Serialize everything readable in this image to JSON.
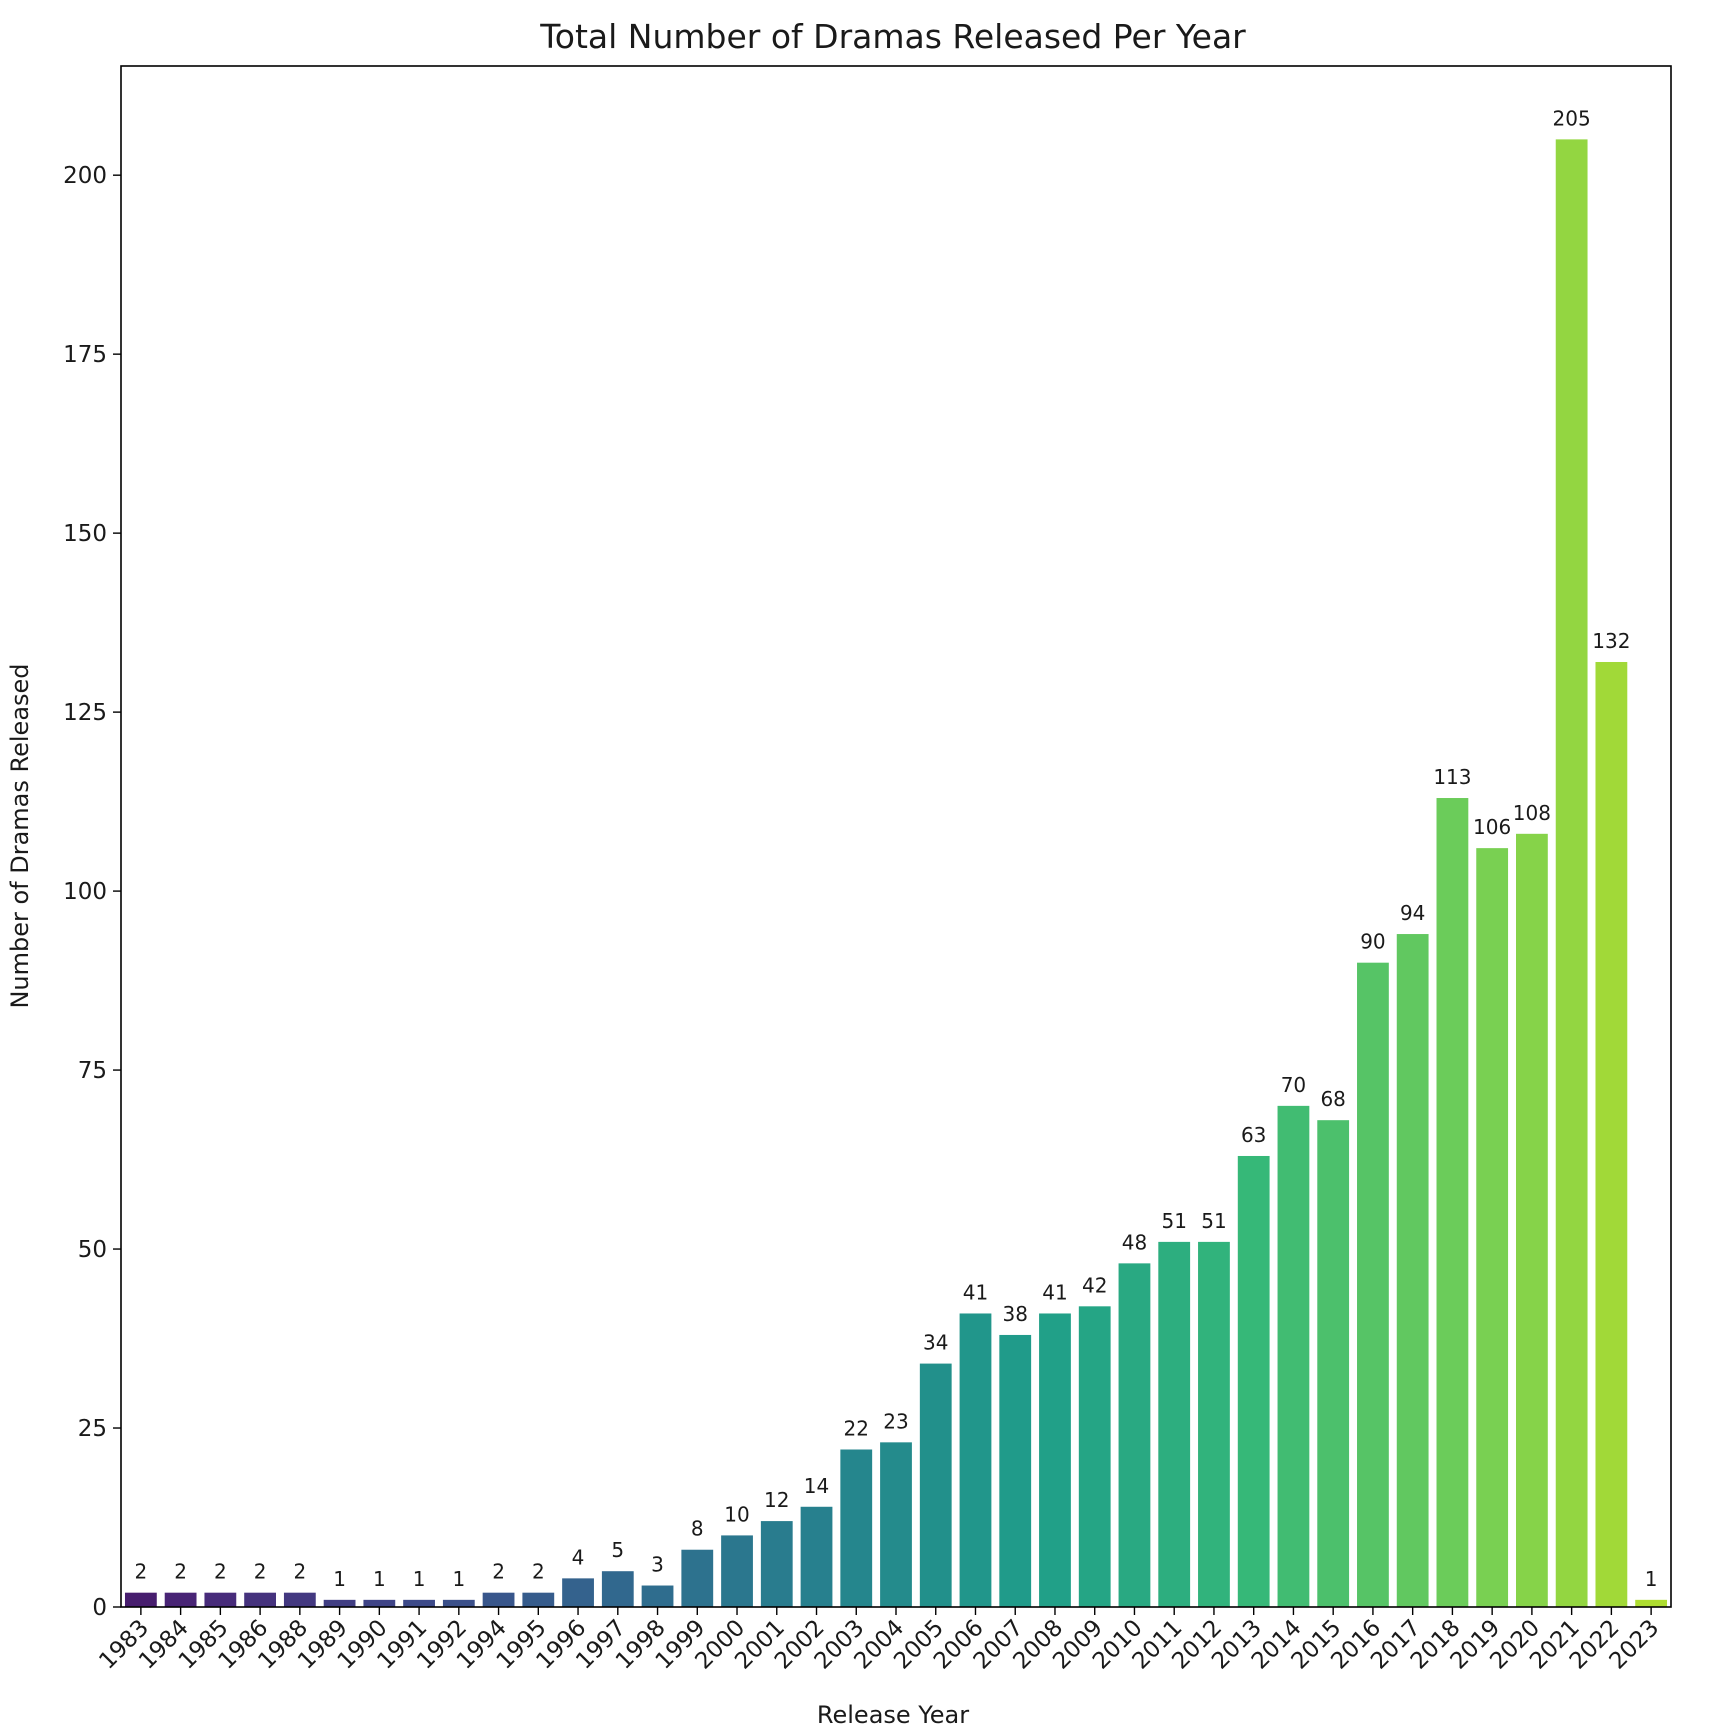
{
  "chart_data": {
    "type": "bar",
    "title": "Total Number of Dramas Released Per Year",
    "xlabel": "Release Year",
    "ylabel": "Number of Dramas Released",
    "categories": [
      "1983",
      "1984",
      "1985",
      "1986",
      "1988",
      "1989",
      "1990",
      "1991",
      "1992",
      "1994",
      "1995",
      "1996",
      "1997",
      "1998",
      "1999",
      "2000",
      "2001",
      "2002",
      "2003",
      "2004",
      "2005",
      "2006",
      "2007",
      "2008",
      "2009",
      "2010",
      "2011",
      "2012",
      "2013",
      "2014",
      "2015",
      "2016",
      "2017",
      "2018",
      "2019",
      "2020",
      "2021",
      "2022",
      "2023"
    ],
    "values": [
      2,
      2,
      2,
      2,
      2,
      1,
      1,
      1,
      1,
      2,
      2,
      4,
      5,
      3,
      8,
      10,
      12,
      14,
      22,
      23,
      34,
      41,
      38,
      41,
      42,
      48,
      51,
      51,
      63,
      70,
      68,
      90,
      94,
      113,
      106,
      108,
      205,
      132,
      1
    ],
    "ylim": [
      0,
      215.25
    ],
    "yticks": [
      0,
      25,
      50,
      75,
      100,
      125,
      150,
      175,
      200
    ],
    "colormap": "viridis",
    "grid": false
  }
}
